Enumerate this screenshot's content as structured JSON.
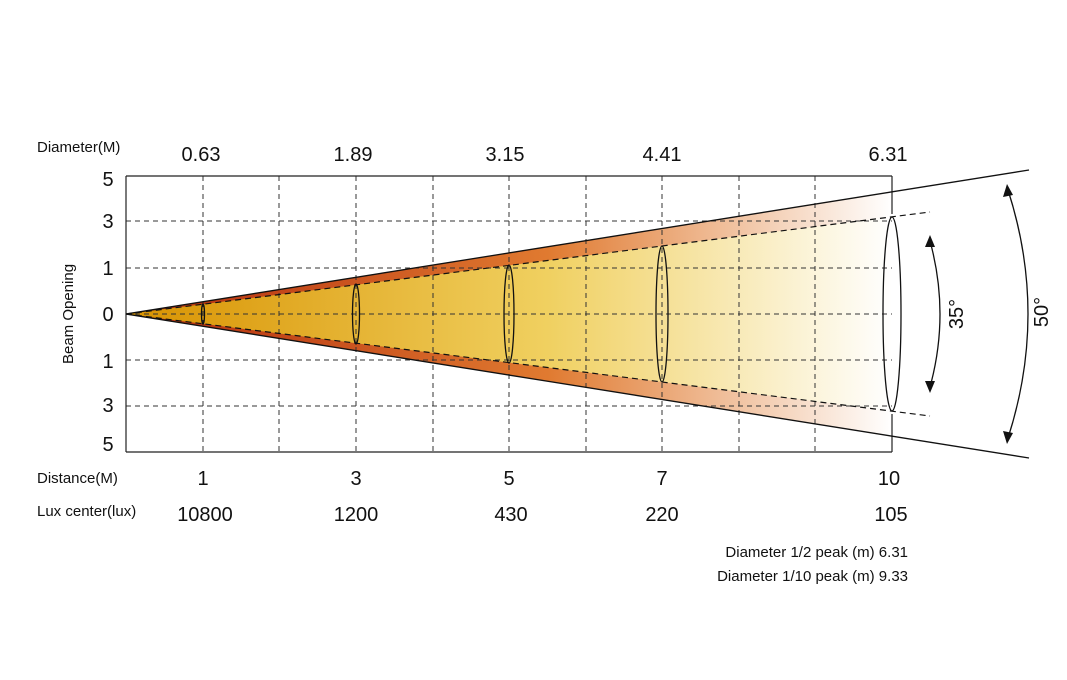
{
  "rows": {
    "diameter_title": "Diameter(M)",
    "distance_title": "Distance(M)",
    "lux_title": "Lux center(lux)"
  },
  "y_axis": {
    "title": "Beam Opening",
    "ticks": [
      "5",
      "3",
      "1",
      "0",
      "1",
      "3",
      "5"
    ]
  },
  "beam": {
    "diameters": [
      "0.63",
      "1.89",
      "3.15",
      "4.41",
      "6.31"
    ],
    "distances": [
      "1",
      "3",
      "5",
      "7",
      "10"
    ],
    "lux_center": [
      "10800",
      "1200",
      "430",
      "220",
      "105"
    ],
    "half_peak_angle": "35°",
    "tenth_peak_angle": "50°"
  },
  "footer": {
    "half_peak_line": "Diameter 1/2 peak (m) 6.31",
    "tenth_peak_line": "Diameter 1/10 peak (m) 9.33"
  },
  "colors": {
    "outer_start": "#b22a0c",
    "outer_mid": "#e07a30",
    "inner_start": "#d89200",
    "inner_mid": "#f0d060",
    "fade": "#ffffff"
  }
}
